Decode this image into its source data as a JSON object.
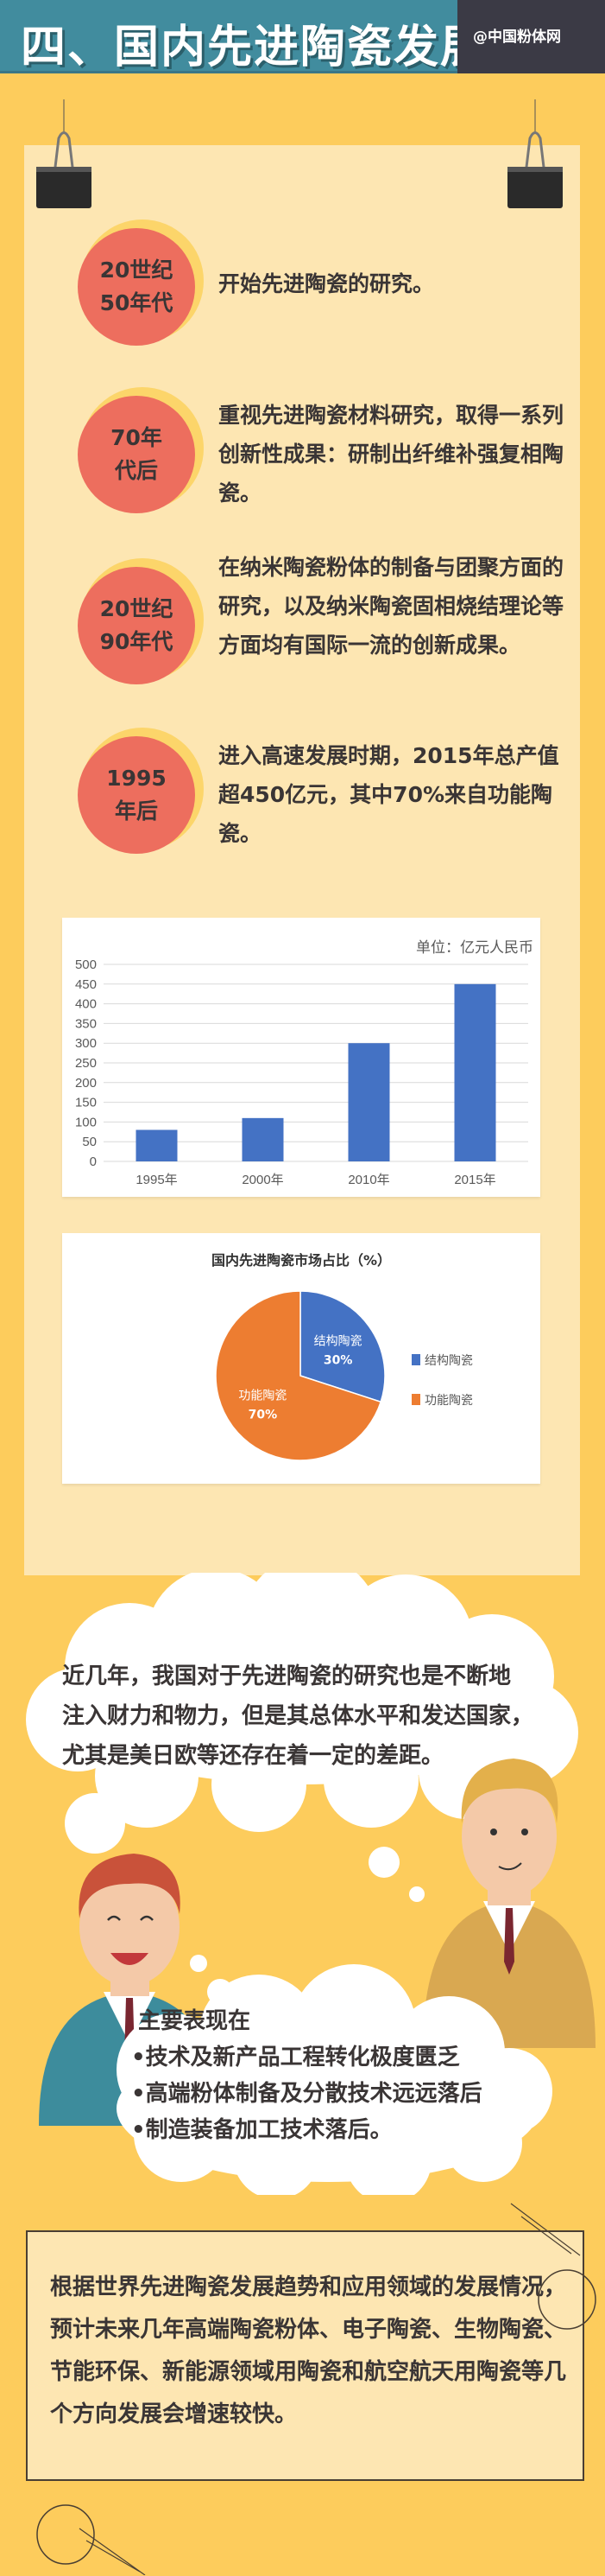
{
  "header": {
    "title": "四、国内先进陶瓷发展",
    "brand": "@中国粉体网"
  },
  "timeline": [
    {
      "era_line1": "20世纪",
      "era_line2": "50年代",
      "text": "开始先进陶瓷的研究。"
    },
    {
      "era_line1": "70年",
      "era_line2": "代后",
      "text": "重视先进陶瓷材料研究，取得一系列创新性成果：研制出纤维补强复相陶瓷。"
    },
    {
      "era_line1": "20世纪",
      "era_line2": "90年代",
      "text": "在纳米陶瓷粉体的制备与团聚方面的研究，以及纳米陶瓷固相烧结理论等方面均有国际一流的创新成果。"
    },
    {
      "era_line1": "1995",
      "era_line2": "年后",
      "text": "进入高速发展时期，2015年总产值超450亿元，其中70%来自功能陶瓷。"
    }
  ],
  "chart_data": [
    {
      "type": "bar",
      "title": "",
      "unit_label": "单位：亿元人民币",
      "categories": [
        "1995年",
        "2000年",
        "2010年",
        "2015年"
      ],
      "values": [
        80,
        110,
        300,
        450
      ],
      "ylim": [
        0,
        500
      ],
      "yticks": [
        "0",
        "50",
        "100",
        "150",
        "200",
        "250",
        "300",
        "350",
        "400",
        "450",
        "500"
      ],
      "grid": true,
      "color": "#4472c4"
    },
    {
      "type": "pie",
      "title": "国内先进陶瓷市场占比（%）",
      "slices": [
        {
          "name": "结构陶瓷",
          "value": 30,
          "label": "30%",
          "color": "#4472c4"
        },
        {
          "name": "功能陶瓷",
          "value": 70,
          "label": "70%",
          "color": "#ed7d31"
        }
      ],
      "legend": "right"
    }
  ],
  "cloud1": {
    "lines": [
      "近几年，我国对于先进陶瓷的研究也是不断地",
      "注入财力和物力，但是其总体水平和发达国家，",
      "尤其是美日欧等还存在着一定的差距。"
    ]
  },
  "cloud2": {
    "heading": "主要表现在",
    "bullets": [
      "•技术及新产品工程转化极度匮乏",
      "•高端粉体制备及分散技术远远落后",
      "•制造装备加工技术落后。"
    ]
  },
  "final": {
    "text": "根据世界先进陶瓷发展趋势和应用领域的发展情况，预计未来几年高端陶瓷粉体、电子陶瓷、生物陶瓷、节能环保、新能源领域用陶瓷和航空航天用陶瓷等几个方向发展会增速较快。"
  }
}
